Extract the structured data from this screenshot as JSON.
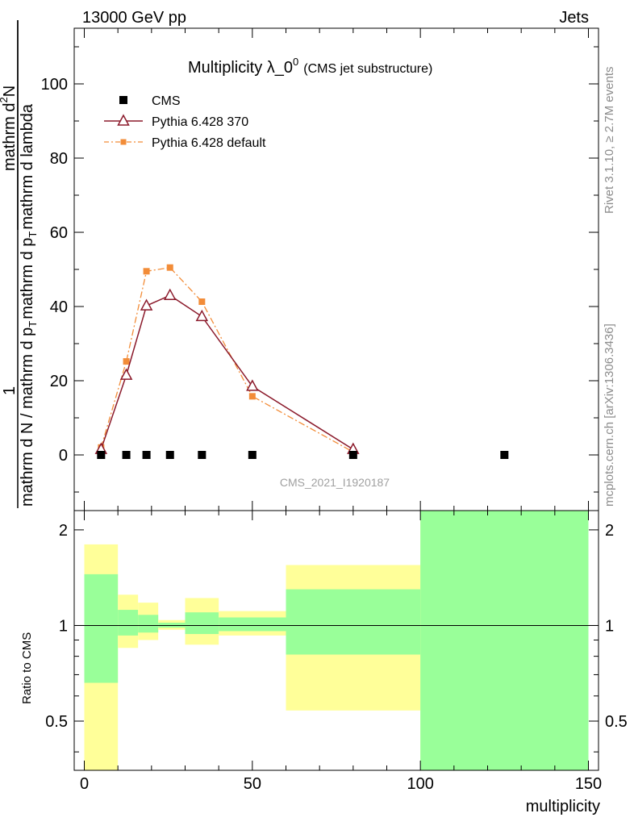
{
  "header": {
    "left": "13000 GeV pp",
    "right": "Jets"
  },
  "side_labels": {
    "rivet": "Rivet 3.1.10, ≥ 2.7M events",
    "mcplots": "mcplots.cern.ch [arXiv:1306.3436]"
  },
  "watermark": "CMS_2021_I1920187",
  "colors": {
    "cms": "#000000",
    "pythia370": "#8b1a2b",
    "pythia_default": "#f28c38",
    "band_inner": "#99ff99",
    "band_outer": "#ffff99"
  },
  "chart_data": [
    {
      "type": "line",
      "title_main": "Multiplicity λ_0",
      "title_sup": "0",
      "title_sub": "(CMS jet substructure)",
      "ylabel": {
        "frac_num": "1",
        "frac_den": "mathrm d N / mathrm d p",
        "frac_den_sub": "T",
        "frac_den_rest": "mathrm d p",
        "frac_den_sub2": "T",
        "frac_den_end": "mathrm d lambda",
        "frac_top_num": "mathrm d",
        "frac_top_sup": "2",
        "frac_top_n": "N"
      },
      "xlim": [
        -3,
        153
      ],
      "ylim": [
        -15,
        115
      ],
      "yticks": [
        0,
        20,
        40,
        60,
        80,
        100
      ],
      "legend": [
        {
          "label": "CMS",
          "marker": "square"
        },
        {
          "label": "Pythia 6.428 370",
          "marker": "triangle"
        },
        {
          "label": "Pythia 6.428 default",
          "marker": "small-square"
        }
      ],
      "series": [
        {
          "name": "CMS",
          "x": [
            5,
            12.5,
            18.5,
            25.5,
            35,
            50,
            80,
            125
          ],
          "y": [
            0,
            0,
            0,
            0,
            0,
            0,
            0,
            0
          ]
        },
        {
          "name": "Pythia 6.428 370",
          "x": [
            5,
            12.5,
            18.5,
            25.5,
            35,
            50,
            80
          ],
          "y": [
            1.5,
            21.5,
            40.2,
            43.0,
            37.3,
            18.5,
            1.5
          ]
        },
        {
          "name": "Pythia 6.428 default",
          "x": [
            5,
            12.5,
            18.5,
            25.5,
            35,
            50,
            80
          ],
          "y": [
            2.0,
            25.2,
            49.5,
            50.5,
            41.3,
            15.8,
            0.8
          ]
        }
      ]
    },
    {
      "type": "area",
      "ylabel": "Ratio to CMS",
      "xlabel": "multiplicity",
      "xlim": [
        -3,
        153
      ],
      "ylim": [
        0.35,
        2.3
      ],
      "yticks": [
        0.5,
        1,
        2
      ],
      "xticks": [
        0,
        50,
        100,
        150
      ],
      "reference": 1,
      "bins": [
        {
          "x0": 0,
          "x1": 10,
          "inner": [
            0.66,
            1.45
          ],
          "outer": [
            0.35,
            1.8
          ]
        },
        {
          "x0": 10,
          "x1": 16,
          "inner": [
            0.93,
            1.12
          ],
          "outer": [
            0.85,
            1.25
          ]
        },
        {
          "x0": 16,
          "x1": 22,
          "inner": [
            0.95,
            1.08
          ],
          "outer": [
            0.9,
            1.18
          ]
        },
        {
          "x0": 22,
          "x1": 30,
          "inner": [
            0.985,
            1.02
          ],
          "outer": [
            0.97,
            1.04
          ]
        },
        {
          "x0": 30,
          "x1": 40,
          "inner": [
            0.94,
            1.1
          ],
          "outer": [
            0.87,
            1.22
          ]
        },
        {
          "x0": 40,
          "x1": 60,
          "inner": [
            0.96,
            1.06
          ],
          "outer": [
            0.93,
            1.11
          ]
        },
        {
          "x0": 60,
          "x1": 100,
          "inner": [
            0.81,
            1.3
          ],
          "outer": [
            0.54,
            1.55
          ]
        },
        {
          "x0": 100,
          "x1": 150,
          "inner": [
            0.35,
            2.3
          ],
          "outer": [
            0.35,
            2.3
          ]
        }
      ]
    }
  ]
}
